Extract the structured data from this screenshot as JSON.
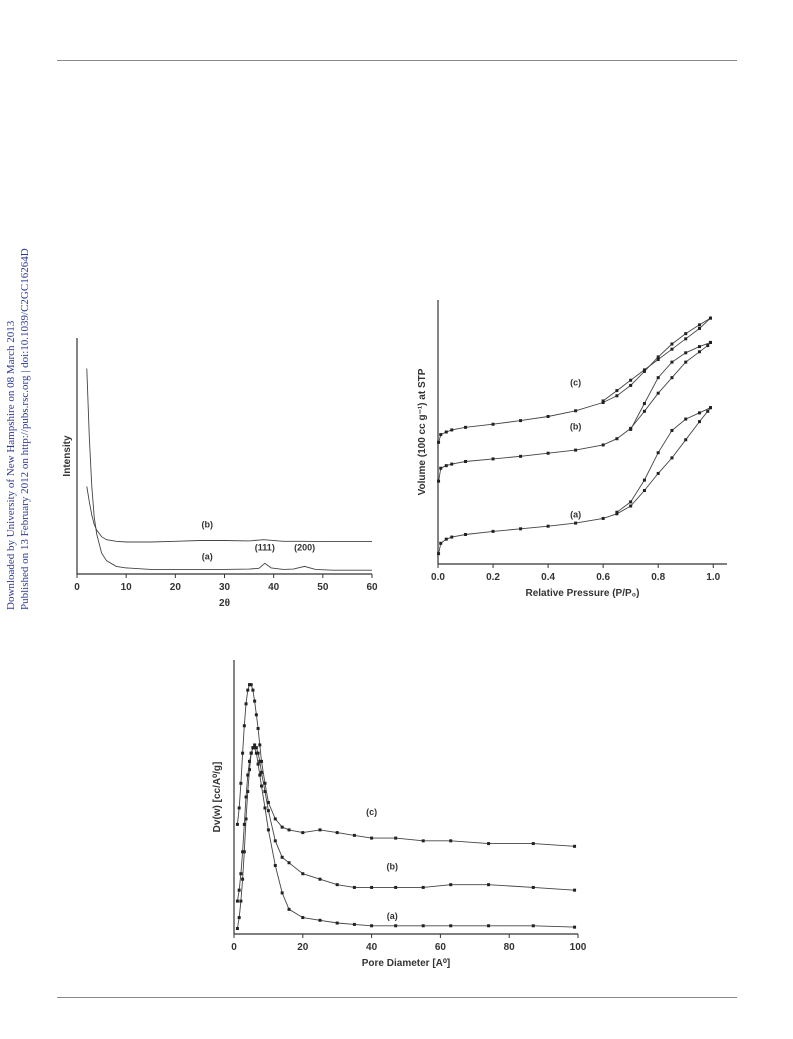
{
  "watermark": {
    "line1": "Downloaded by University of New Hampshire on 08 March 2013",
    "line2": "Published on 13 February 2012 on http://pubs.rsc.org | doi:10.1039/C2GC16264D"
  },
  "chart_data": [
    {
      "type": "line",
      "xlabel": "2θ",
      "ylabel": "Intensity",
      "xlim": [
        0,
        60
      ],
      "xticks": [
        "0",
        "10",
        "20",
        "30",
        "40",
        "50",
        "60"
      ],
      "series": [
        {
          "name": "(a)",
          "x": [
            2,
            2.5,
            3,
            3.5,
            4,
            5,
            6,
            8,
            10,
            15,
            20,
            25,
            30,
            35,
            37,
            38.2,
            39.5,
            42,
            44,
            46.3,
            48.5,
            52,
            56,
            60
          ],
          "y": [
            5.4,
            3.6,
            2.3,
            1.5,
            1.05,
            0.55,
            0.35,
            0.2,
            0.16,
            0.12,
            0.12,
            0.12,
            0.12,
            0.13,
            0.15,
            0.28,
            0.16,
            0.12,
            0.13,
            0.2,
            0.12,
            0.1,
            0.1,
            0.1
          ]
        },
        {
          "name": "(b)",
          "x": [
            2,
            2.5,
            3,
            3.5,
            4,
            5,
            6,
            8,
            10,
            15,
            20,
            25,
            30,
            35,
            38,
            42,
            46,
            50,
            55,
            60
          ],
          "y": [
            2.3,
            1.9,
            1.55,
            1.3,
            1.15,
            0.98,
            0.9,
            0.86,
            0.84,
            0.84,
            0.86,
            0.88,
            0.88,
            0.87,
            0.9,
            0.86,
            0.86,
            0.85,
            0.85,
            0.85
          ]
        }
      ],
      "annotations": [
        "(111)",
        "(200)"
      ]
    },
    {
      "type": "line",
      "xlabel": "Relative Pressure (P/P₀)",
      "ylabel": "Volume (100 cc g⁻¹) at STP",
      "xlim": [
        0,
        1.05
      ],
      "xticks": [
        "0.0",
        "0.2",
        "0.4",
        "0.6",
        "0.8",
        "1.0"
      ],
      "series": [
        {
          "name": "(a)",
          "x": [
            0.002,
            0.01,
            0.03,
            0.05,
            0.1,
            0.2,
            0.3,
            0.4,
            0.5,
            0.6,
            0.65,
            0.7,
            0.75,
            0.8,
            0.85,
            0.9,
            0.95,
            0.98,
            0.99
          ],
          "y": [
            0.2,
            0.4,
            0.48,
            0.52,
            0.57,
            0.63,
            0.68,
            0.73,
            0.79,
            0.88,
            0.97,
            1.12,
            1.42,
            1.75,
            2.05,
            2.4,
            2.75,
            2.95,
            3.02
          ],
          "desorption": {
            "x": [
              0.99,
              0.95,
              0.9,
              0.85,
              0.8,
              0.75,
              0.7,
              0.65
            ],
            "y": [
              3.02,
              2.92,
              2.8,
              2.58,
              2.15,
              1.62,
              1.2,
              1.0
            ]
          }
        },
        {
          "name": "(b)",
          "x": [
            0.002,
            0.01,
            0.03,
            0.05,
            0.1,
            0.2,
            0.3,
            0.4,
            0.5,
            0.6,
            0.65,
            0.7,
            0.75,
            0.8,
            0.85,
            0.9,
            0.95,
            0.98,
            0.99
          ],
          "y": [
            1.6,
            1.85,
            1.9,
            1.93,
            1.98,
            2.03,
            2.08,
            2.14,
            2.2,
            2.3,
            2.42,
            2.62,
            2.95,
            3.3,
            3.6,
            3.9,
            4.1,
            4.22,
            4.28
          ],
          "desorption": {
            "x": [
              0.99,
              0.95,
              0.9,
              0.85,
              0.8,
              0.75,
              0.7
            ],
            "y": [
              4.28,
              4.2,
              4.08,
              3.9,
              3.6,
              3.1,
              2.6
            ]
          }
        },
        {
          "name": "(c)",
          "x": [
            0.002,
            0.01,
            0.03,
            0.05,
            0.1,
            0.2,
            0.3,
            0.4,
            0.5,
            0.6,
            0.65,
            0.7,
            0.75,
            0.8,
            0.85,
            0.9,
            0.95,
            0.99
          ],
          "y": [
            2.35,
            2.5,
            2.55,
            2.59,
            2.64,
            2.7,
            2.77,
            2.85,
            2.96,
            3.12,
            3.25,
            3.45,
            3.72,
            4.0,
            4.25,
            4.45,
            4.62,
            4.75
          ],
          "desorption": {
            "x": [
              0.99,
              0.95,
              0.9,
              0.85,
              0.8,
              0.75,
              0.7,
              0.65,
              0.6
            ],
            "y": [
              4.75,
              4.55,
              4.35,
              4.15,
              3.95,
              3.75,
              3.55,
              3.35,
              3.15
            ]
          }
        }
      ]
    },
    {
      "type": "line",
      "xlabel": "Pore Diameter [A⁰]",
      "ylabel": "Dv(w) [cc/A⁰/g]",
      "xlim": [
        0,
        100
      ],
      "xticks": [
        "0",
        "20",
        "40",
        "60",
        "80",
        "100"
      ],
      "series": [
        {
          "name": "(a)",
          "x": [
            1,
            1.5,
            2,
            2.5,
            3,
            3.5,
            4,
            4.5,
            5,
            5.5,
            6,
            6.5,
            7,
            7.5,
            8,
            9,
            10,
            12,
            14,
            16,
            20,
            25,
            30,
            35,
            40,
            47,
            55,
            63,
            74,
            87,
            99
          ],
          "y": [
            0.02,
            0.06,
            0.12,
            0.2,
            0.3,
            0.42,
            0.52,
            0.6,
            0.66,
            0.68,
            0.68,
            0.66,
            0.62,
            0.58,
            0.54,
            0.46,
            0.38,
            0.25,
            0.15,
            0.09,
            0.06,
            0.05,
            0.04,
            0.035,
            0.03,
            0.03,
            0.03,
            0.03,
            0.03,
            0.03,
            0.025
          ]
        },
        {
          "name": "(b)",
          "x": [
            1,
            1.5,
            2,
            2.5,
            3,
            3.5,
            4,
            4.5,
            5,
            5.5,
            6,
            6.5,
            7,
            7.5,
            8,
            9,
            10,
            12,
            14,
            16,
            20,
            25,
            30,
            35,
            40,
            47,
            55,
            63,
            74,
            87,
            99
          ],
          "y": [
            0.12,
            0.16,
            0.22,
            0.3,
            0.4,
            0.5,
            0.58,
            0.63,
            0.66,
            0.68,
            0.69,
            0.68,
            0.66,
            0.63,
            0.59,
            0.52,
            0.45,
            0.34,
            0.28,
            0.26,
            0.22,
            0.2,
            0.18,
            0.17,
            0.17,
            0.17,
            0.17,
            0.18,
            0.18,
            0.17,
            0.16
          ]
        },
        {
          "name": "(c)",
          "x": [
            1,
            1.5,
            2,
            2.5,
            3,
            3.5,
            4,
            4.5,
            5,
            5.5,
            6,
            6.5,
            7,
            7.5,
            8,
            9,
            10,
            12,
            14,
            16,
            20,
            25,
            30,
            35,
            40,
            47,
            55,
            63,
            74,
            87,
            99
          ],
          "y": [
            0.4,
            0.46,
            0.55,
            0.66,
            0.76,
            0.84,
            0.89,
            0.91,
            0.91,
            0.89,
            0.85,
            0.8,
            0.75,
            0.69,
            0.63,
            0.55,
            0.48,
            0.42,
            0.39,
            0.38,
            0.37,
            0.38,
            0.37,
            0.36,
            0.35,
            0.35,
            0.34,
            0.34,
            0.33,
            0.33,
            0.32
          ]
        }
      ]
    }
  ]
}
